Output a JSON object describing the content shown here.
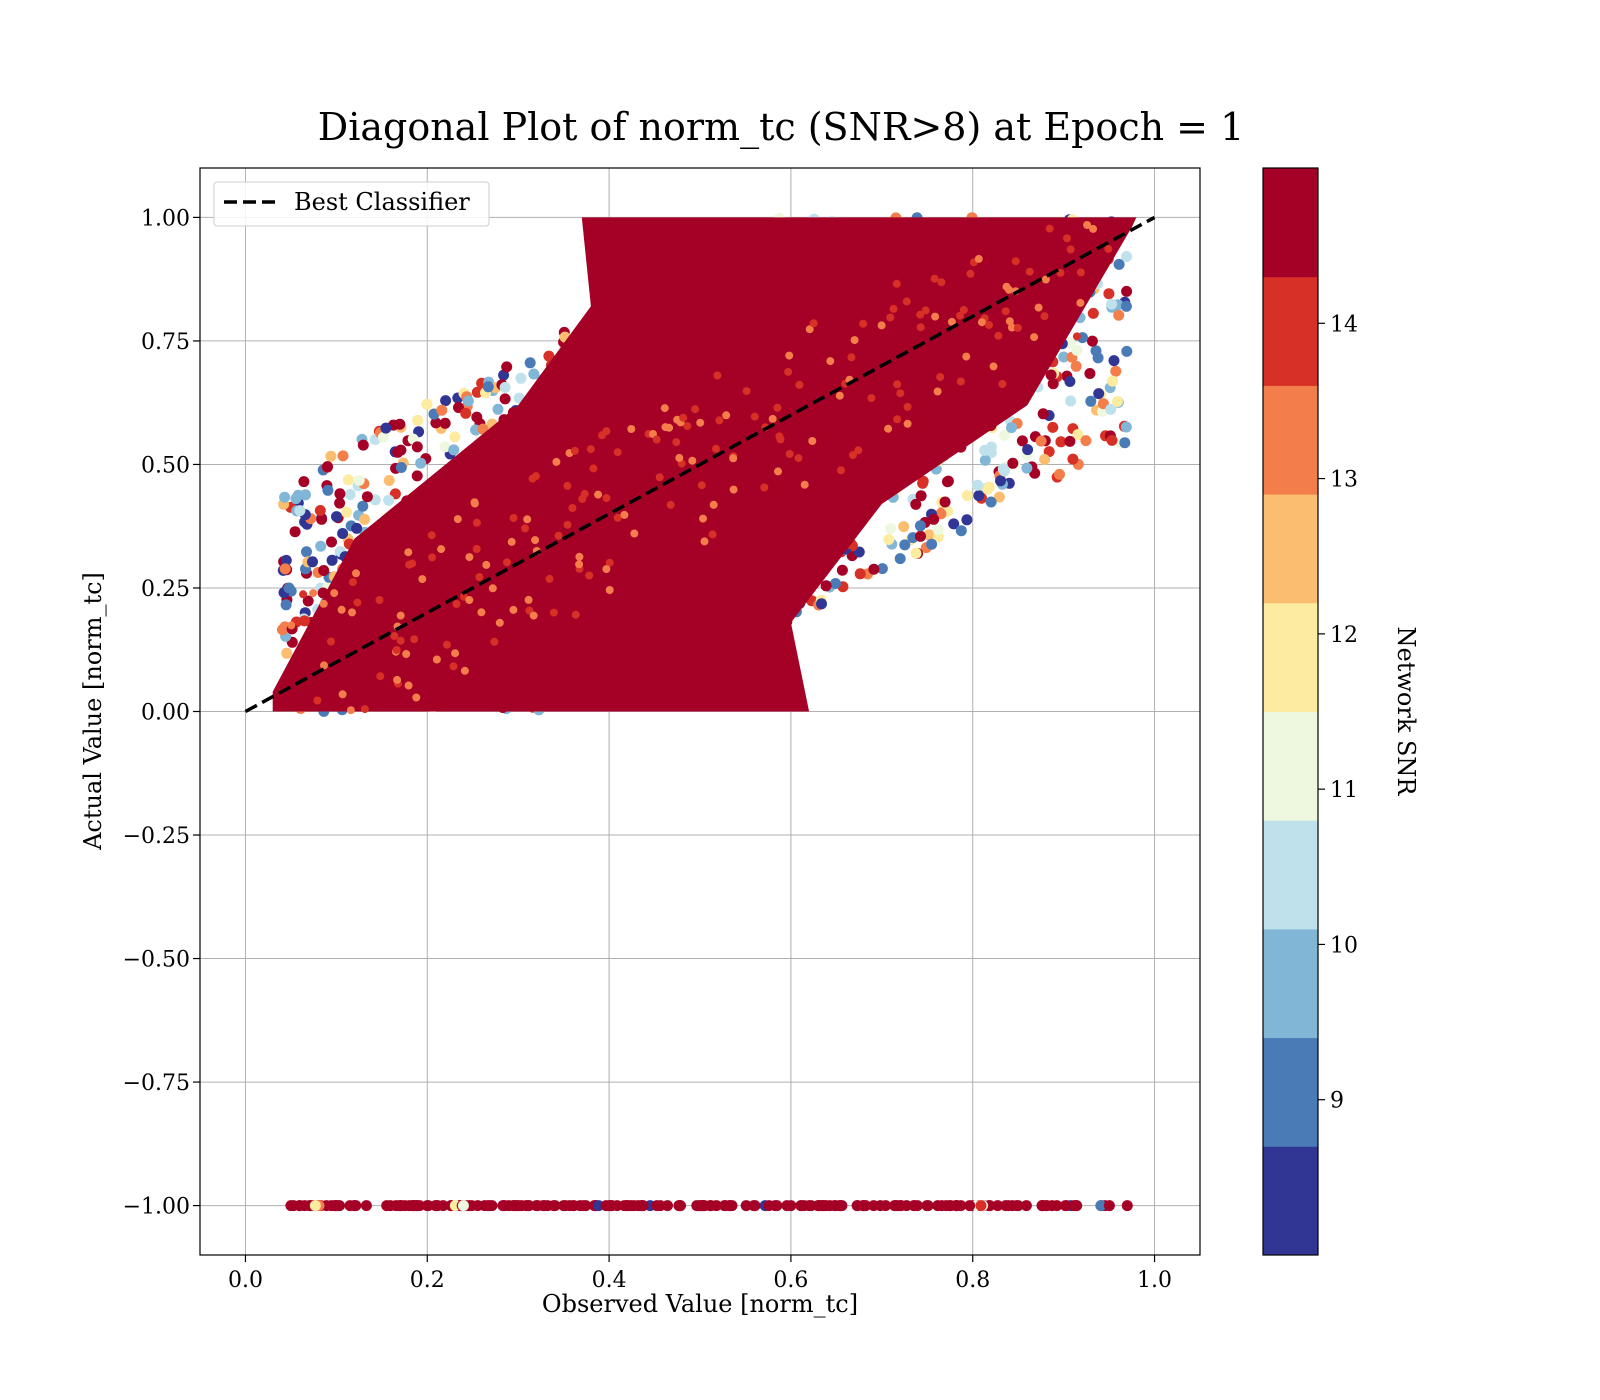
{
  "chart_data": {
    "type": "scatter",
    "title": "Diagonal Plot of norm_tc (SNR>8) at Epoch = 1",
    "xlabel": "Observed Value [norm_tc]",
    "ylabel": "Actual Value [norm_tc]",
    "xlim": [
      -0.05,
      1.05
    ],
    "ylim": [
      -1.1,
      1.1
    ],
    "x_ticks": [
      0.0,
      0.2,
      0.4,
      0.6,
      0.8,
      1.0
    ],
    "x_tick_labels": [
      "0.0",
      "0.2",
      "0.4",
      "0.6",
      "0.8",
      "1.0"
    ],
    "y_ticks": [
      1.0,
      0.75,
      0.5,
      0.25,
      0.0,
      -0.25,
      -0.5,
      -0.75,
      -1.0
    ],
    "y_tick_labels": [
      "1.00",
      "0.75",
      "0.50",
      "0.25",
      "0.00",
      "−0.25",
      "−0.50",
      "−0.75",
      "−1.00"
    ],
    "grid": true,
    "legend": {
      "position": "top-left",
      "entries": [
        {
          "label": "Best Classifier",
          "style": "dashed",
          "color": "#000000"
        }
      ]
    },
    "reference_line": {
      "label": "Best Classifier",
      "x": [
        0.0,
        1.0
      ],
      "y": [
        0.0,
        1.0
      ]
    },
    "colorbar": {
      "label": "Network SNR",
      "range": [
        8.0,
        15.0
      ],
      "ticks": [
        9,
        10,
        11,
        12,
        13,
        14
      ],
      "tick_labels": [
        "9",
        "10",
        "11",
        "12",
        "13",
        "14"
      ],
      "colors": [
        "#313695",
        "#4a7bb7",
        "#82b6d6",
        "#bfe1ec",
        "#eef8df",
        "#fdeba0",
        "#fbbd6f",
        "#f47e4b",
        "#d73027",
        "#a50026"
      ]
    },
    "series": [
      {
        "description": "Main diagonal band points (x, y, snr)",
        "points": [
          [
            0.05,
            0.02,
            14.6
          ],
          [
            0.08,
            0.05,
            14.5
          ],
          [
            0.12,
            0.08,
            14.7
          ],
          [
            0.15,
            0.16,
            14.4
          ],
          [
            0.2,
            0.18,
            14.6
          ],
          [
            0.25,
            0.24,
            14.8
          ],
          [
            0.3,
            0.33,
            14.5
          ],
          [
            0.35,
            0.32,
            14.6
          ],
          [
            0.4,
            0.41,
            14.7
          ],
          [
            0.45,
            0.47,
            14.5
          ],
          [
            0.5,
            0.48,
            14.6
          ],
          [
            0.55,
            0.56,
            14.8
          ],
          [
            0.6,
            0.61,
            14.5
          ],
          [
            0.65,
            0.62,
            14.7
          ],
          [
            0.7,
            0.72,
            14.6
          ],
          [
            0.75,
            0.76,
            14.5
          ],
          [
            0.8,
            0.79,
            14.6
          ],
          [
            0.85,
            0.87,
            14.7
          ],
          [
            0.9,
            0.91,
            14.8
          ],
          [
            0.95,
            0.96,
            14.6
          ]
        ]
      },
      {
        "description": "Sentinel row at y = -1",
        "points": [
          [
            0.05,
            -1.0,
            14.6
          ],
          [
            0.2,
            -1.0,
            14.7
          ],
          [
            0.4,
            -1.0,
            14.5
          ],
          [
            0.6,
            -1.0,
            14.6
          ],
          [
            0.8,
            -1.0,
            14.7
          ],
          [
            0.97,
            -1.0,
            14.6
          ]
        ]
      }
    ]
  }
}
